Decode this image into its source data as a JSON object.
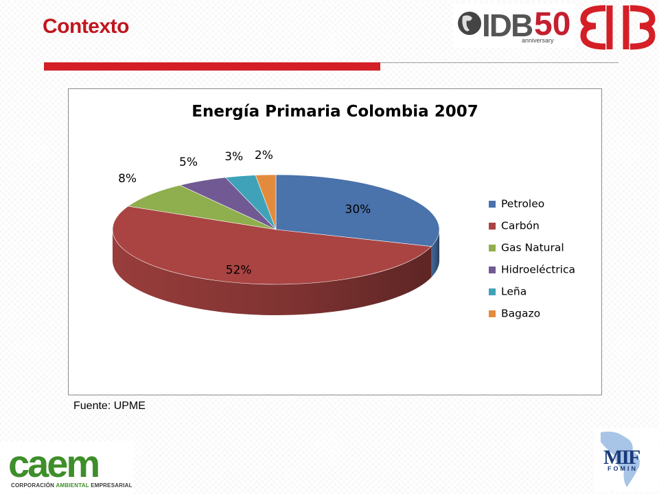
{
  "slide": {
    "title": "Contexto",
    "source": "Fuente: UPME"
  },
  "logos": {
    "idb_text": "IDB",
    "idb_fifty": "50",
    "idb_sub": "anniversary",
    "caem_word": "caem",
    "caem_sub_1": "CORPORACIÓN ",
    "caem_sub_2": "AMBIENTAL",
    "caem_sub_3": " EMPRESARIAL",
    "mif_text": "MIF",
    "fomin_text": "FOMIN"
  },
  "colors": {
    "title": "#c0161e",
    "accent_bar": "#d41f26"
  },
  "chart_data": {
    "type": "pie",
    "title": "Energía Primaria Colombia 2007",
    "legend_position": "right",
    "categories": [
      "Petroleo",
      "Carbón",
      "Gas Natural",
      "Hidroeléctrica",
      "Leña",
      "Bagazo"
    ],
    "values": [
      30,
      52,
      8,
      5,
      3,
      2
    ],
    "labels": [
      "30%",
      "52%",
      "8%",
      "5%",
      "3%",
      "2%"
    ],
    "colors": [
      "#4a72ab",
      "#a94442",
      "#8fae4d",
      "#715a93",
      "#3fa2b8",
      "#e38b3d"
    ]
  }
}
